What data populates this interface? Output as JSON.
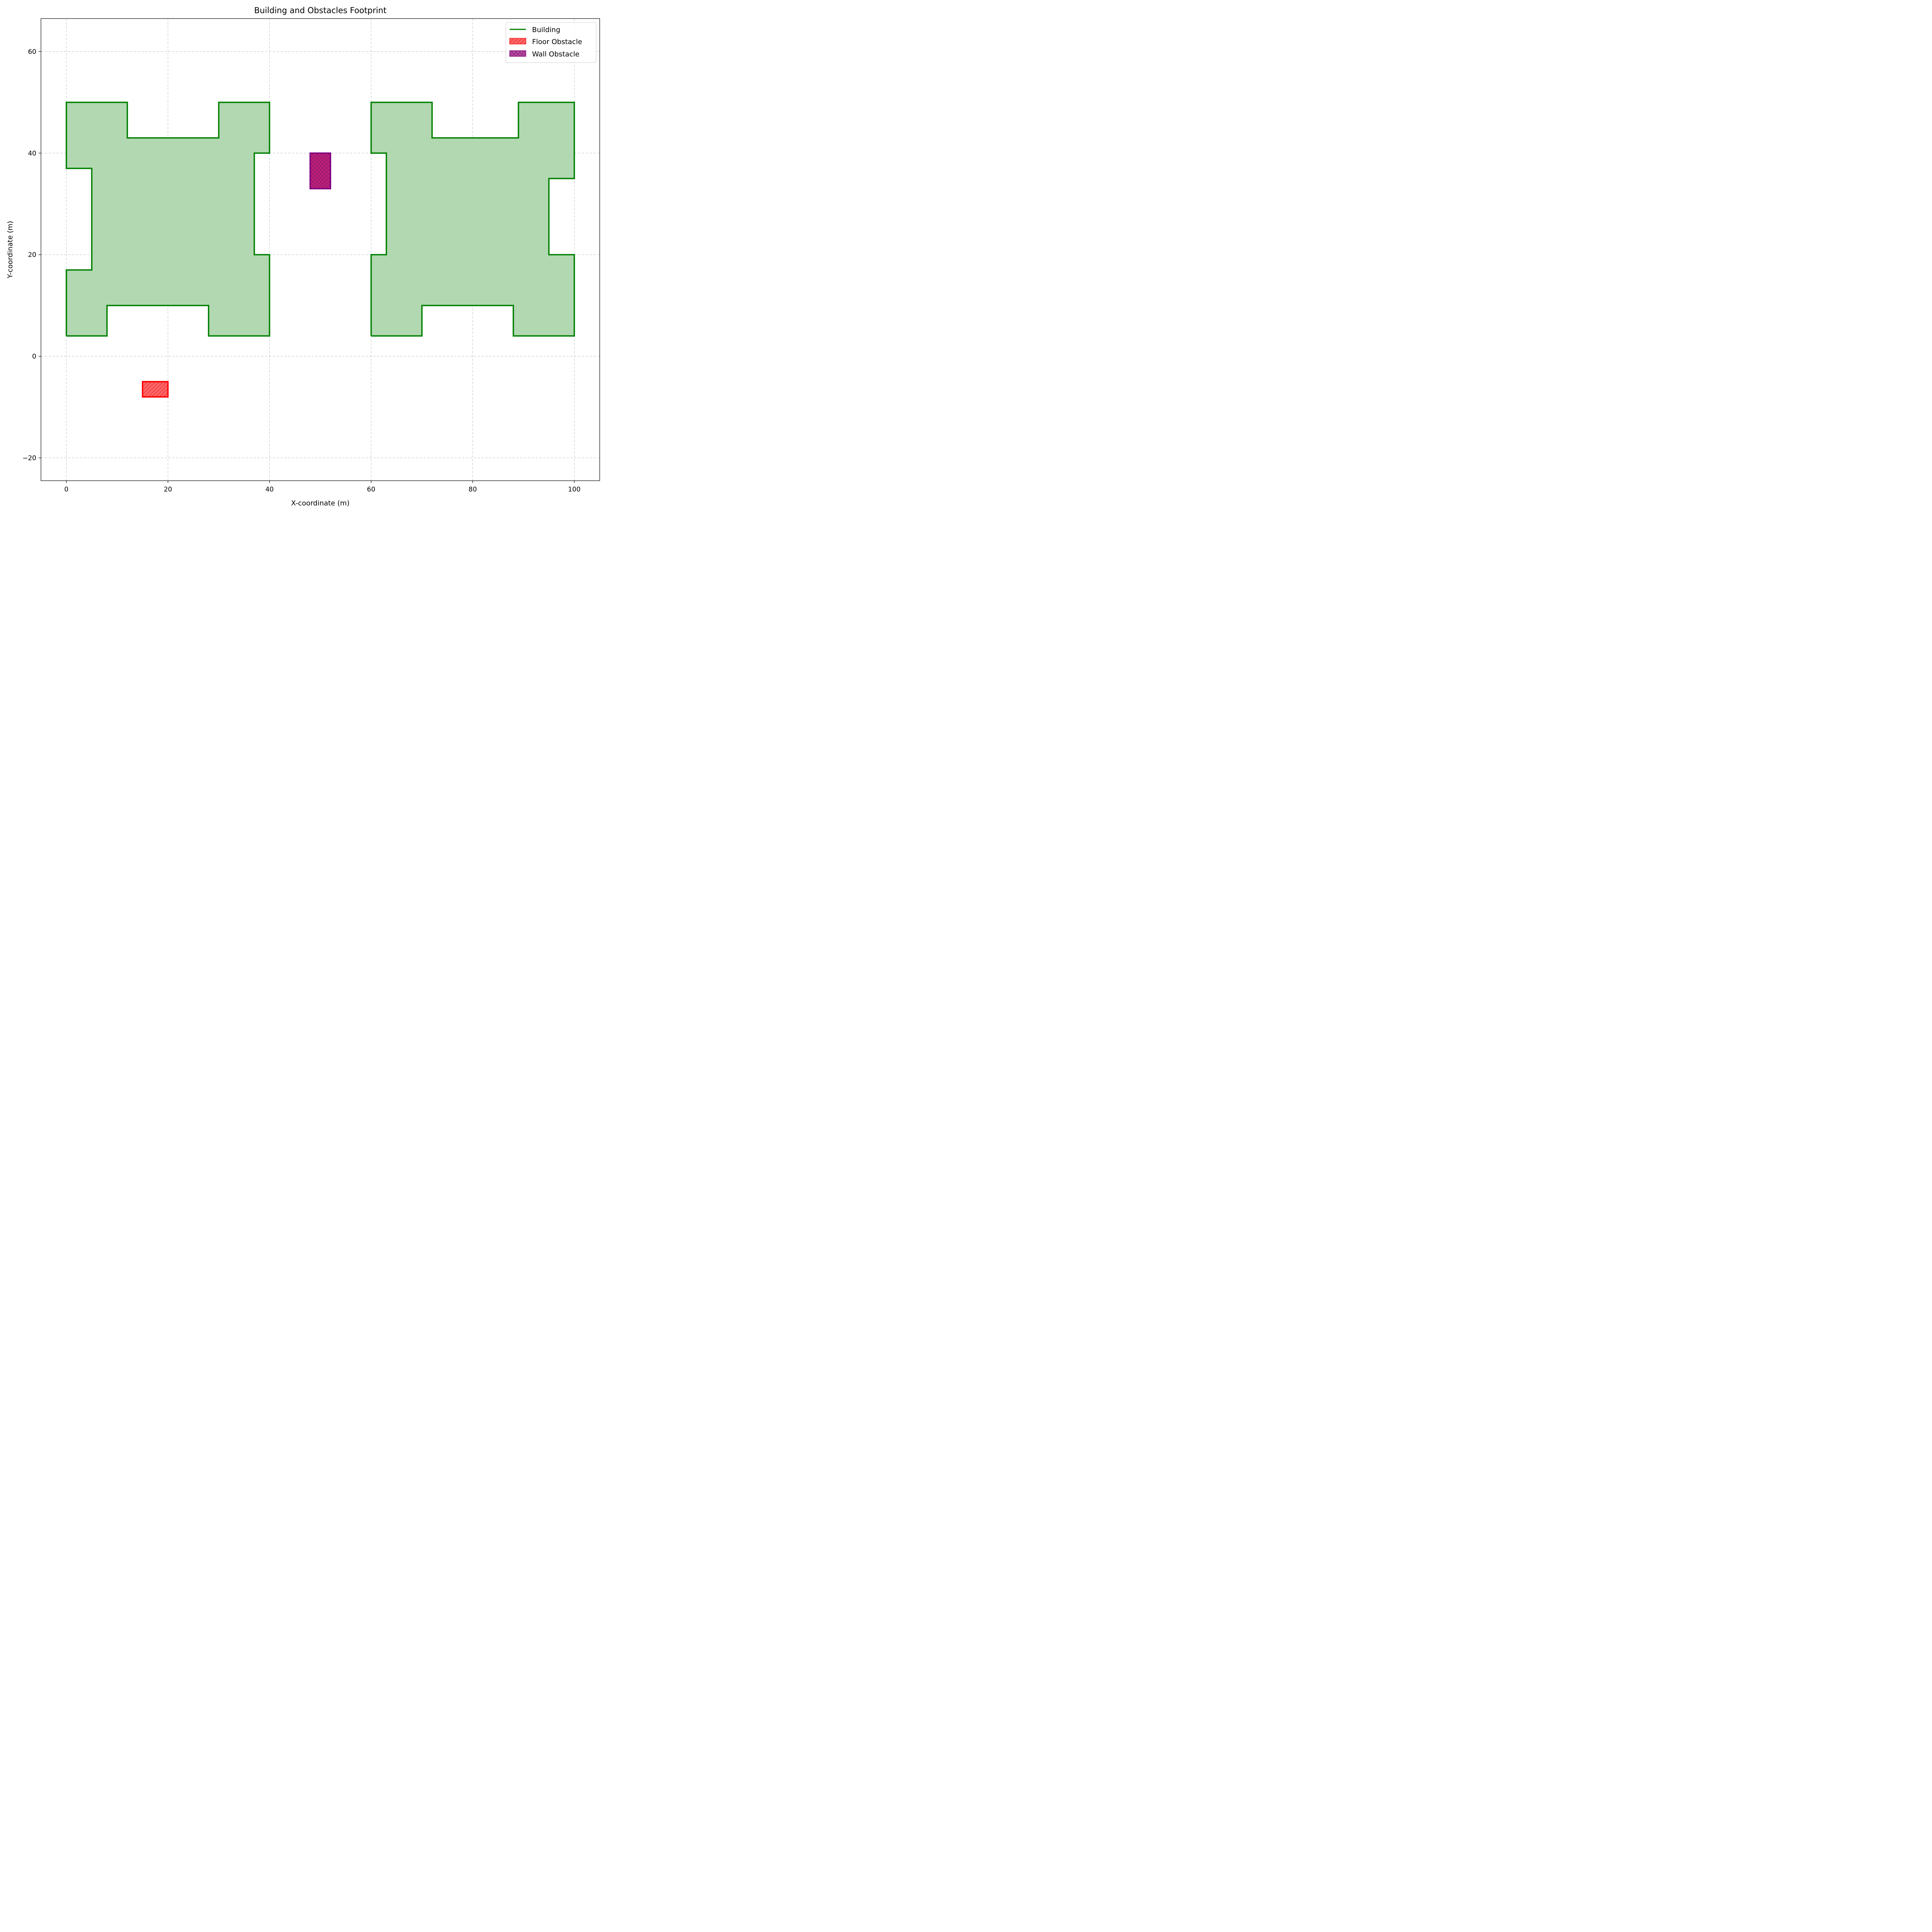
{
  "chart_data": {
    "type": "footprint",
    "title": "Building and Obstacles Footprint",
    "xlabel": "X-coordinate (m)",
    "ylabel": "Y-coordinate (m)",
    "xlim": [
      -5,
      105
    ],
    "ylim": [
      -24.5,
      66.5
    ],
    "xticks": [
      0,
      20,
      40,
      60,
      80,
      100
    ],
    "yticks": [
      -20,
      0,
      20,
      40,
      60
    ],
    "xtick_labels": [
      "0",
      "20",
      "40",
      "60",
      "80",
      "100"
    ],
    "ytick_labels": [
      "−20",
      "0",
      "20",
      "40",
      "60"
    ],
    "grid": true,
    "legend_position": "top-right",
    "legend": [
      {
        "label": "Building",
        "kind": "line"
      },
      {
        "label": "Floor Obstacle",
        "kind": "hatch-diag"
      },
      {
        "label": "Wall Obstacle",
        "kind": "hatch-cross"
      }
    ],
    "colors": {
      "building_edge": "#008000",
      "building_fill": "#b2d8b2",
      "floor_edge": "#ff0000",
      "floor_fill": "#ff6666",
      "wall_edge": "#800080",
      "wall_fill": "#c0207a",
      "grid": "#b0b0b0"
    },
    "buildings": [
      {
        "name": "Building",
        "points": [
          [
            0,
            4
          ],
          [
            8,
            4
          ],
          [
            8,
            10
          ],
          [
            28,
            10
          ],
          [
            28,
            4
          ],
          [
            40,
            4
          ],
          [
            40,
            20
          ],
          [
            37,
            20
          ],
          [
            37,
            40
          ],
          [
            40,
            40
          ],
          [
            40,
            50
          ],
          [
            30,
            50
          ],
          [
            30,
            43
          ],
          [
            12,
            43
          ],
          [
            12,
            50
          ],
          [
            0,
            50
          ],
          [
            0,
            37
          ],
          [
            5,
            37
          ],
          [
            5,
            17
          ],
          [
            0,
            17
          ],
          [
            0,
            4
          ]
        ]
      },
      {
        "name": "Building",
        "points": [
          [
            60,
            4
          ],
          [
            70,
            4
          ],
          [
            70,
            10
          ],
          [
            88,
            10
          ],
          [
            88,
            4
          ],
          [
            100,
            4
          ],
          [
            100,
            20
          ],
          [
            95,
            20
          ],
          [
            95,
            35
          ],
          [
            100,
            35
          ],
          [
            100,
            50
          ],
          [
            89,
            50
          ],
          [
            89,
            43
          ],
          [
            72,
            43
          ],
          [
            72,
            50
          ],
          [
            60,
            50
          ],
          [
            60,
            40
          ],
          [
            63,
            40
          ],
          [
            63,
            20
          ],
          [
            60,
            20
          ],
          [
            60,
            4
          ]
        ]
      }
    ],
    "obstacles": [
      {
        "name": "Floor Obstacle",
        "x": [
          15,
          20
        ],
        "y": [
          -8,
          -5
        ]
      },
      {
        "name": "Wall Obstacle",
        "x": [
          48,
          52
        ],
        "y": [
          33,
          40
        ]
      }
    ]
  }
}
